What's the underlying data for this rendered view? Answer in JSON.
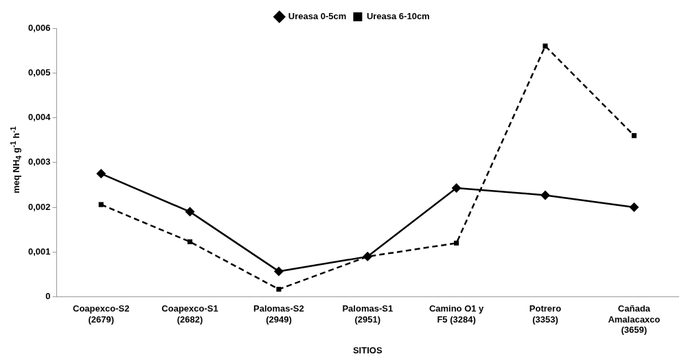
{
  "chart_data": {
    "type": "line",
    "xlabel": "SITIOS",
    "ylabel": "meq NH$_{4}$ g$^{-1}$ h$^{-1}$",
    "categories": [
      "Coapexco-S2\n(2679)",
      "Coapexco-S1\n(2682)",
      "Palomas-S2\n(2949)",
      "Palomas-S1\n(2951)",
      "Camino O1 y\nF5 (3284)",
      "Potrero\n(3353)",
      "Cañada\nAmalacaxco\n(3659)"
    ],
    "series": [
      {
        "name": "Ureasa 0-5cm",
        "color": "#000000",
        "marker": "diamond",
        "line_style": "solid",
        "values": [
          0.00275,
          0.0019,
          0.00057,
          0.0009,
          0.00243,
          0.00227,
          0.002
        ]
      },
      {
        "name": "Ureasa 6-10cm",
        "color": "#000000",
        "marker": "square",
        "line_style": "dashed",
        "values": [
          0.00206,
          0.00123,
          0.00017,
          0.0009,
          0.0012,
          0.0056,
          0.0036
        ]
      }
    ],
    "ylim": [
      0,
      0.006
    ],
    "yticks": [
      0,
      {
        "value": 0.001,
        "label": "0,001"
      },
      {
        "value": 0.002,
        "label": "0,002"
      },
      {
        "value": 0.003,
        "label": "0,003"
      },
      {
        "value": 0.004,
        "label": "0,004"
      },
      {
        "value": 0.005,
        "label": "0,005"
      },
      {
        "value": 0.006,
        "label": "0,006"
      }
    ],
    "grid": false,
    "legend": "top"
  }
}
